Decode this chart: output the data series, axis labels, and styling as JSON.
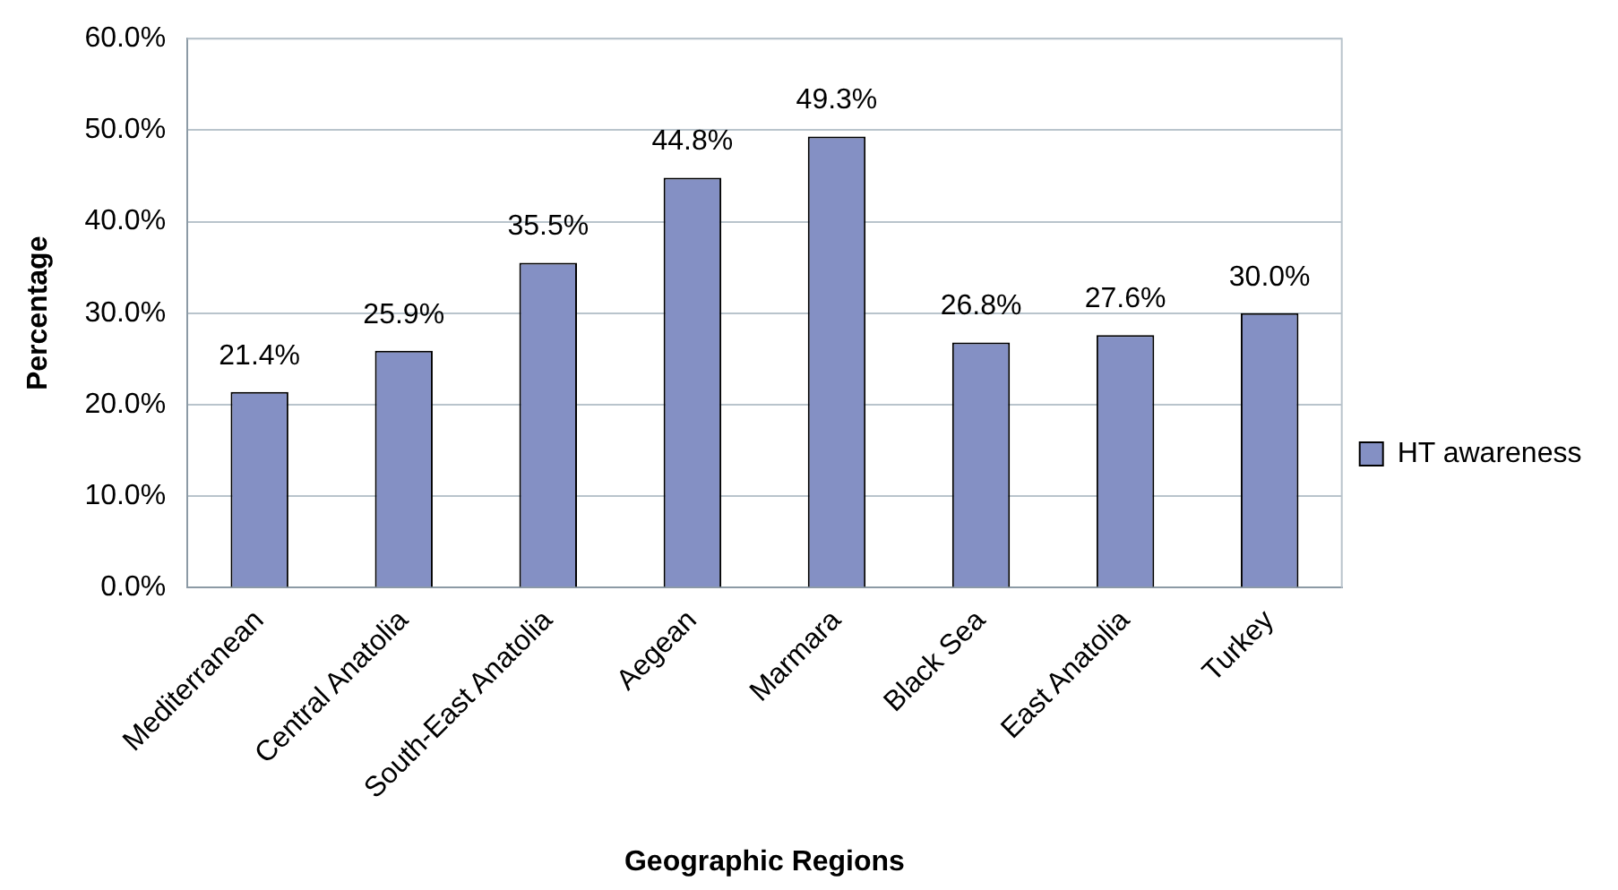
{
  "chart_data": {
    "type": "bar",
    "xlabel": "Geographic Regions",
    "ylabel": "Percentage",
    "categories": [
      "Mediterranean",
      "Central Anatolia",
      "South-East Anatolia",
      "Aegean",
      "Marmara",
      "Black Sea",
      "East Anatolia",
      "Turkey"
    ],
    "series": [
      {
        "name": "HT awareness",
        "color": "#8490c4",
        "values": [
          21.4,
          25.9,
          35.5,
          44.8,
          49.3,
          26.8,
          27.6,
          30.0
        ],
        "value_labels": [
          "21.4%",
          "25.9%",
          "35.5%",
          "44.8%",
          "49.3%",
          "26.8%",
          "27.6%",
          "30.0%"
        ]
      }
    ],
    "ylim": [
      0,
      60
    ],
    "yticks": [
      {
        "value": 0,
        "label": "0.0%"
      },
      {
        "value": 10,
        "label": "10.0%"
      },
      {
        "value": 20,
        "label": "20.0%"
      },
      {
        "value": 30,
        "label": "30.0%"
      },
      {
        "value": 40,
        "label": "40.0%"
      },
      {
        "value": 50,
        "label": "50.0%"
      },
      {
        "value": 60,
        "label": "60.0%"
      }
    ],
    "grid": "y",
    "legend": "right"
  }
}
